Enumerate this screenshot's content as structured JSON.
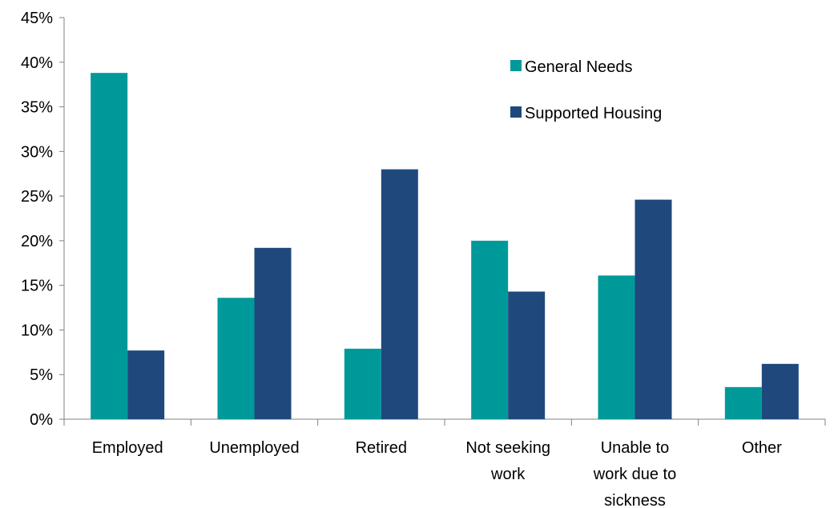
{
  "chart_data": {
    "type": "bar",
    "title": "",
    "xlabel": "",
    "ylabel": "",
    "categories": [
      [
        "Employed"
      ],
      [
        "Unemployed"
      ],
      [
        "Retired"
      ],
      [
        "Not seeking",
        "work"
      ],
      [
        "Unable to",
        "work due to",
        "sickness"
      ],
      [
        "Other"
      ]
    ],
    "series": [
      {
        "name": "General Needs",
        "color": "#009999",
        "values": [
          38.8,
          13.6,
          7.9,
          20.0,
          16.1,
          3.6
        ]
      },
      {
        "name": "Supported Housing",
        "color": "#1f497d",
        "values": [
          7.7,
          19.2,
          28.0,
          14.3,
          24.6,
          6.2
        ]
      }
    ],
    "ylim": [
      0,
      45
    ],
    "ytick_step": 5,
    "ytick_format": "percent",
    "grid": false,
    "legend_position": "top-right"
  }
}
